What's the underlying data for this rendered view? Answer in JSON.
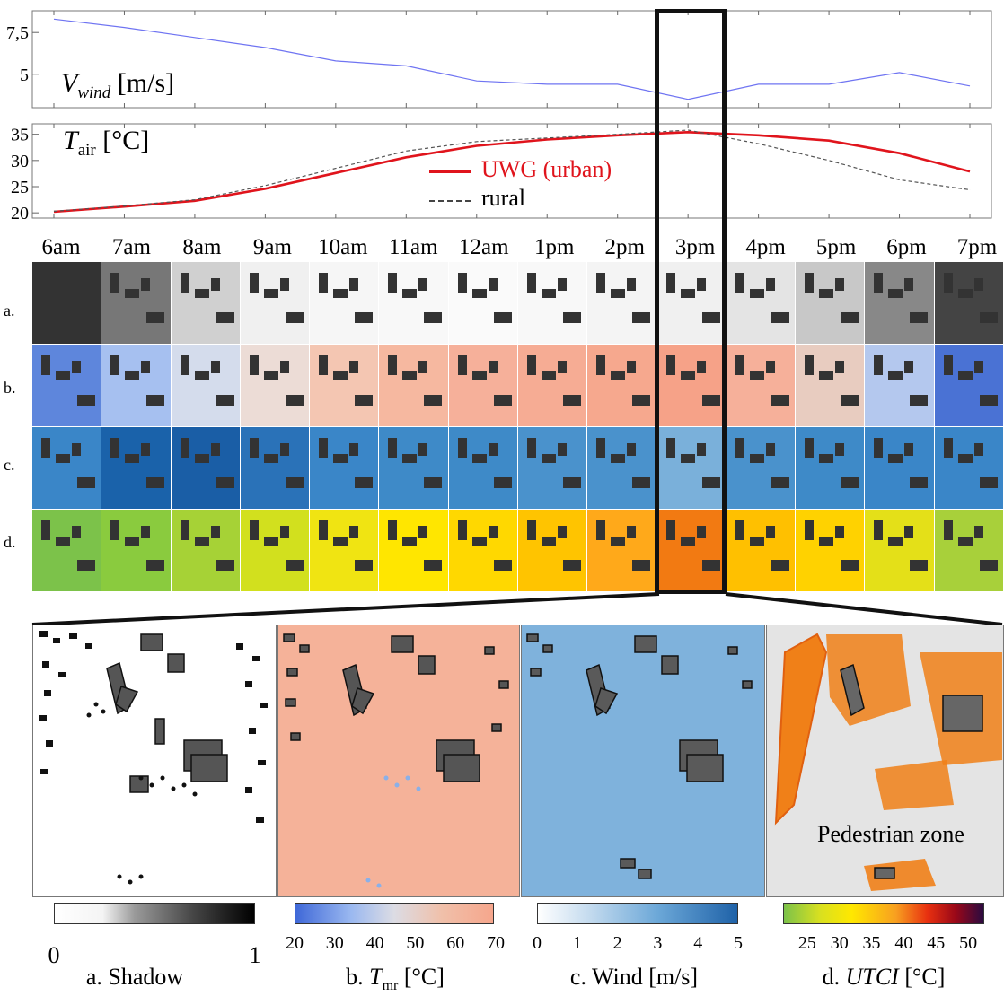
{
  "wind_chart": {
    "label_main": "V",
    "label_sub": "wind",
    "label_unit": " [m/s]",
    "yticks": [
      "7,5",
      "5"
    ]
  },
  "temp_chart": {
    "label_main": "T",
    "label_sub": "air",
    "label_unit": " [°C]",
    "yticks": [
      "35",
      "30",
      "25",
      "20"
    ],
    "legend": {
      "urban": "UWG (urban)",
      "rural": "rural"
    }
  },
  "chart_data": [
    {
      "type": "line",
      "categories": [
        "6am",
        "7am",
        "8am",
        "9am",
        "10am",
        "11am",
        "12am",
        "1pm",
        "2pm",
        "3pm",
        "4pm",
        "5pm",
        "6pm",
        "7pm"
      ],
      "ylim": [
        3.0,
        8.8
      ],
      "series": [
        {
          "name": "",
          "color": "#6f74f2",
          "values": [
            8.3,
            7.8,
            7.2,
            6.6,
            5.8,
            5.5,
            4.6,
            4.4,
            4.4,
            3.5,
            4.4,
            4.4,
            5.1,
            4.3
          ]
        }
      ]
    },
    {
      "type": "line",
      "categories": [
        "6am",
        "7am",
        "8am",
        "9am",
        "10am",
        "11am",
        "12am",
        "1pm",
        "2pm",
        "3pm",
        "4pm",
        "5pm",
        "6pm",
        "7pm"
      ],
      "ylim": [
        19,
        37
      ],
      "series": [
        {
          "name": "UWG (urban)",
          "color": "#e0141c",
          "values": [
            20.2,
            21.2,
            22.3,
            24.6,
            27.6,
            30.6,
            32.8,
            34.0,
            34.8,
            35.4,
            34.8,
            33.8,
            31.4,
            27.9
          ]
        },
        {
          "name": "rural",
          "color": "#555555",
          "values": [
            20.3,
            21.3,
            22.5,
            25.2,
            28.5,
            31.8,
            33.6,
            34.3,
            35.0,
            35.8,
            33.2,
            30.0,
            26.3,
            24.4
          ]
        }
      ]
    }
  ],
  "hours": [
    "6am",
    "7am",
    "8am",
    "9am",
    "10am",
    "11am",
    "12am",
    "1pm",
    "2pm",
    "3pm",
    "4pm",
    "5pm",
    "6pm",
    "7pm"
  ],
  "rows": [
    {
      "label": "a."
    },
    {
      "label": "b."
    },
    {
      "label": "c."
    },
    {
      "label": "d."
    }
  ],
  "pedestrian_label": "Pedestrian zone",
  "colorbars": [
    {
      "ticks": [
        "0",
        "1"
      ],
      "title_pre": "a. Shadow",
      "title_italic": "",
      "title_sub": "",
      "title_post": ""
    },
    {
      "ticks": [
        "20",
        "30",
        "40",
        "50",
        "60",
        "70"
      ],
      "title_pre": "b. ",
      "title_italic": "T",
      "title_sub": "mr",
      "title_post": " [°C]"
    },
    {
      "ticks": [
        "0",
        "1",
        "2",
        "3",
        "4",
        "5"
      ],
      "title_pre": "c. Wind [m/s]",
      "title_italic": "",
      "title_sub": "",
      "title_post": ""
    },
    {
      "ticks": [
        "25",
        "30",
        "35",
        "40",
        "45",
        "50"
      ],
      "title_pre": "d. ",
      "title_italic": "UTCI",
      "title_sub": "",
      "title_post": " [°C]"
    }
  ],
  "colors": {
    "wind_line": "#6f74f2",
    "urban_line": "#e0141c",
    "rural_line": "#555555"
  }
}
